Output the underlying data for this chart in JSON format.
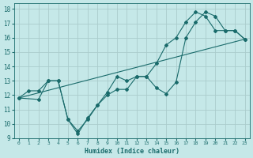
{
  "xlabel": "Humidex (Indice chaleur)",
  "xlim": [
    -0.5,
    23.5
  ],
  "ylim": [
    9,
    18.4
  ],
  "xticks": [
    0,
    1,
    2,
    3,
    4,
    5,
    6,
    7,
    8,
    9,
    10,
    11,
    12,
    13,
    14,
    15,
    16,
    17,
    18,
    19,
    20,
    21,
    22,
    23
  ],
  "yticks": [
    9,
    10,
    11,
    12,
    13,
    14,
    15,
    16,
    17,
    18
  ],
  "background_color": "#c5e8e8",
  "grid_color": "#aacccc",
  "line_color": "#1a6b6b",
  "line1_x": [
    0,
    1,
    2,
    3,
    4,
    5,
    6,
    7,
    8,
    9,
    10,
    11,
    12,
    13,
    14,
    15,
    16,
    17,
    18,
    19,
    20,
    21,
    22,
    23
  ],
  "line1_y": [
    11.8,
    12.3,
    12.3,
    13.0,
    13.0,
    10.3,
    9.5,
    10.3,
    11.3,
    12.0,
    12.4,
    12.4,
    13.3,
    13.3,
    12.5,
    12.1,
    12.9,
    16.0,
    17.1,
    17.8,
    17.5,
    16.5,
    16.5,
    15.9
  ],
  "line2_x": [
    0,
    2,
    3,
    4,
    5,
    6,
    7,
    8,
    9,
    10,
    11,
    12,
    13,
    14,
    15,
    16,
    17,
    18,
    19,
    20,
    21,
    22,
    23
  ],
  "line2_y": [
    11.8,
    11.7,
    13.0,
    13.0,
    10.3,
    9.3,
    10.4,
    11.3,
    12.2,
    13.3,
    13.0,
    13.3,
    13.3,
    14.2,
    15.5,
    16.0,
    17.1,
    17.8,
    17.5,
    16.5,
    16.5,
    16.5,
    15.9
  ],
  "line3_x": [
    0,
    23
  ],
  "line3_y": [
    11.8,
    15.9
  ]
}
